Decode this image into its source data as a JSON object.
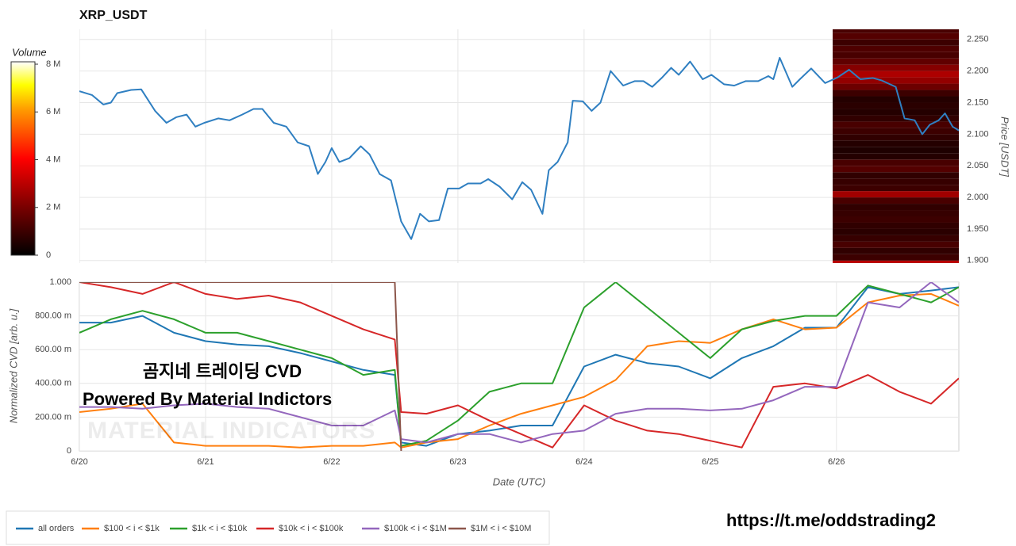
{
  "chart_data": [
    {
      "type": "line",
      "title": "XRP_USDT",
      "y_label": "Price [USDT]",
      "color": "#2f7fc1",
      "x": [
        0,
        0.1,
        0.19,
        0.25,
        0.3,
        0.41,
        0.49,
        0.6,
        0.69,
        0.77,
        0.85,
        0.92,
        0.99,
        1.1,
        1.19,
        1.29,
        1.38,
        1.45,
        1.54,
        1.64,
        1.73,
        1.82,
        1.89,
        1.95,
        2.0,
        2.06,
        2.14,
        2.23,
        2.3,
        2.38,
        2.47,
        2.55,
        2.63,
        2.7,
        2.77,
        2.85,
        2.92,
        3.01,
        3.08,
        3.18,
        3.24,
        3.33,
        3.43,
        3.51,
        3.58,
        3.67,
        3.72,
        3.79,
        3.87,
        3.91,
        3.99,
        4.06,
        4.13,
        4.21,
        4.31,
        4.4,
        4.47,
        4.54,
        4.62,
        4.69,
        4.75,
        4.84,
        4.94,
        5.01,
        5.11,
        5.19,
        5.28,
        5.38,
        5.46,
        5.5,
        5.55,
        5.65,
        5.71,
        5.8,
        5.91,
        6.01,
        6.1,
        6.19,
        6.29,
        6.36,
        6.47,
        6.54,
        6.62,
        6.68,
        6.74,
        6.81,
        6.86,
        6.92,
        6.97
      ],
      "values": [
        2.168,
        2.162,
        2.147,
        2.15,
        2.165,
        2.17,
        2.171,
        2.137,
        2.118,
        2.127,
        2.131,
        2.112,
        2.118,
        2.125,
        2.122,
        2.131,
        2.14,
        2.14,
        2.118,
        2.112,
        2.087,
        2.081,
        2.037,
        2.056,
        2.078,
        2.056,
        2.062,
        2.081,
        2.068,
        2.037,
        2.027,
        1.962,
        1.934,
        1.974,
        1.962,
        1.964,
        2.014,
        2.014,
        2.022,
        2.022,
        2.029,
        2.017,
        1.997,
        2.024,
        2.012,
        1.974,
        2.043,
        2.056,
        2.087,
        2.153,
        2.152,
        2.137,
        2.15,
        2.2,
        2.177,
        2.184,
        2.184,
        2.175,
        2.19,
        2.205,
        2.194,
        2.215,
        2.187,
        2.194,
        2.179,
        2.177,
        2.184,
        2.184,
        2.192,
        2.187,
        2.221,
        2.175,
        2.187,
        2.204,
        2.181,
        2.19,
        2.202,
        2.187,
        2.189,
        2.185,
        2.175,
        2.125,
        2.122,
        2.1,
        2.115,
        2.122,
        2.133,
        2.112,
        2.106
      ],
      "xlim": [
        0,
        6.97
      ],
      "ylim": [
        1.896,
        2.266
      ],
      "yticks": [
        {
          "value": 1.9,
          "label": "1.900"
        },
        {
          "value": 1.95,
          "label": "1.950"
        },
        {
          "value": 2.0,
          "label": "2.000"
        },
        {
          "value": 2.05,
          "label": "2.050"
        },
        {
          "value": 2.1,
          "label": "2.100"
        },
        {
          "value": 2.15,
          "label": "2.150"
        },
        {
          "value": 2.2,
          "label": "2.200"
        },
        {
          "value": 2.25,
          "label": "2.250"
        }
      ],
      "grid": true,
      "heatmap": {
        "name": "Volume",
        "x_start": 5.97,
        "prices": [
          1.89,
          1.9,
          1.91,
          1.92,
          1.93,
          1.94,
          1.95,
          1.96,
          1.97,
          1.98,
          1.99,
          2.0,
          2.01,
          2.02,
          2.03,
          2.04,
          2.05,
          2.06,
          2.07,
          2.08,
          2.09,
          2.1,
          2.11,
          2.12,
          2.13,
          2.14,
          2.15,
          2.16,
          2.17,
          2.18,
          2.19,
          2.2,
          2.21,
          2.22,
          2.23,
          2.24,
          2.25,
          2.26
        ],
        "volumes": [
          3.0,
          1.0,
          0.8,
          1.2,
          0.9,
          0.7,
          0.8,
          1.0,
          0.9,
          0.8,
          1.2,
          2.6,
          1.0,
          0.9,
          0.8,
          1.4,
          1.2,
          0.6,
          0.5,
          0.6,
          0.8,
          1.0,
          1.2,
          0.8,
          0.6,
          0.7,
          0.6,
          1.0,
          1.8,
          2.4,
          2.8,
          2.2,
          1.6,
          1.2,
          1.3,
          1.0,
          1.4,
          1.2
        ],
        "clim": [
          0,
          8.1
        ],
        "cticks": [
          0,
          {
            "value": 2,
            "label": "2 M"
          },
          {
            "value": 4,
            "label": "4 M"
          },
          {
            "value": 6,
            "label": "6 M"
          },
          {
            "value": 8,
            "label": "8 M"
          }
        ]
      }
    },
    {
      "type": "line",
      "y_label": "Normalized CVD [arb. u.]",
      "x_label": "Date (UTC)",
      "x": [
        0,
        0.25,
        0.5,
        0.75,
        1,
        1.25,
        1.5,
        1.75,
        2,
        2.25,
        2.5,
        2.55,
        2.75,
        3,
        3.25,
        3.5,
        3.75,
        4,
        4.25,
        4.5,
        4.75,
        5,
        5.25,
        5.5,
        5.75,
        6,
        6.25,
        6.5,
        6.75,
        6.97
      ],
      "series": [
        {
          "name": "all orders",
          "color": "#1f77b4",
          "values": [
            0.76,
            0.76,
            0.8,
            0.7,
            0.65,
            0.63,
            0.62,
            0.58,
            0.53,
            0.48,
            0.45,
            0.05,
            0.03,
            0.1,
            0.12,
            0.15,
            0.15,
            0.5,
            0.57,
            0.52,
            0.5,
            0.43,
            0.55,
            0.62,
            0.73,
            0.73,
            0.97,
            0.93,
            0.95,
            0.97
          ]
        },
        {
          "name": "$100 < i < $1k",
          "color": "#ff7f0e",
          "values": [
            0.23,
            0.25,
            0.28,
            0.05,
            0.03,
            0.03,
            0.03,
            0.02,
            0.03,
            0.03,
            0.05,
            0.02,
            0.05,
            0.07,
            0.15,
            0.22,
            0.27,
            0.32,
            0.42,
            0.62,
            0.65,
            0.64,
            0.72,
            0.78,
            0.72,
            0.73,
            0.88,
            0.92,
            0.93,
            0.86
          ]
        },
        {
          "name": "$1k < i < $10k",
          "color": "#2ca02c",
          "values": [
            0.7,
            0.78,
            0.83,
            0.78,
            0.7,
            0.7,
            0.65,
            0.6,
            0.55,
            0.45,
            0.48,
            0.03,
            0.06,
            0.18,
            0.35,
            0.4,
            0.4,
            0.85,
            1.0,
            0.85,
            0.7,
            0.55,
            0.72,
            0.77,
            0.8,
            0.8,
            0.98,
            0.93,
            0.88,
            0.97
          ]
        },
        {
          "name": "$10k < i < $100k",
          "color": "#d62728",
          "values": [
            1.0,
            0.97,
            0.93,
            1.0,
            0.93,
            0.9,
            0.92,
            0.88,
            0.8,
            0.72,
            0.66,
            0.23,
            0.22,
            0.27,
            0.18,
            0.1,
            0.02,
            0.27,
            0.18,
            0.12,
            0.1,
            0.06,
            0.02,
            0.38,
            0.4,
            0.37,
            0.45,
            0.35,
            0.28,
            0.43
          ]
        },
        {
          "name": "$100k < i < $1M",
          "color": "#9467bd",
          "values": [
            0.26,
            0.26,
            0.25,
            0.27,
            0.28,
            0.26,
            0.25,
            0.2,
            0.15,
            0.15,
            0.24,
            0.07,
            0.05,
            0.1,
            0.1,
            0.05,
            0.1,
            0.12,
            0.22,
            0.25,
            0.25,
            0.24,
            0.25,
            0.3,
            0.38,
            0.38,
            0.88,
            0.85,
            1.0,
            0.88
          ]
        },
        {
          "name": "$1M < i < $10M",
          "color": "#8c564b",
          "values": [
            1.0,
            1.0,
            1.0,
            1.0,
            1.0,
            1.0,
            1.0,
            1.0,
            1.0,
            1.0,
            1.0,
            0,
            null,
            null,
            null,
            null,
            null,
            null,
            null,
            null,
            null,
            null,
            null,
            null,
            null,
            null,
            null,
            null,
            null,
            null
          ]
        }
      ],
      "xlim": [
        0,
        6.97
      ],
      "ylim": [
        0,
        1
      ],
      "xticks": [
        {
          "value": 0,
          "label": "6/20"
        },
        {
          "value": 1,
          "label": "6/21"
        },
        {
          "value": 2,
          "label": "6/22"
        },
        {
          "value": 3,
          "label": "6/23"
        },
        {
          "value": 4,
          "label": "6/24"
        },
        {
          "value": 5,
          "label": "6/25"
        },
        {
          "value": 6,
          "label": "6/26"
        }
      ],
      "yticks": [
        0,
        {
          "value": 0.2,
          "label": "200.00 m"
        },
        {
          "value": 0.4,
          "label": "400.00 m"
        },
        {
          "value": 0.6,
          "label": "600.00 m"
        },
        {
          "value": 0.8,
          "label": "800.00 m"
        },
        {
          "value": 1,
          "label": "1.000"
        }
      ],
      "grid": true,
      "legend": "bottom-left"
    }
  ],
  "annotations": {
    "heading": "곰지네 트레이딩 CVD",
    "credit": "Powered By Material Indictors",
    "watermark": "MATERIAL INDICATORS",
    "link": "https://t.me/oddstrading2"
  }
}
